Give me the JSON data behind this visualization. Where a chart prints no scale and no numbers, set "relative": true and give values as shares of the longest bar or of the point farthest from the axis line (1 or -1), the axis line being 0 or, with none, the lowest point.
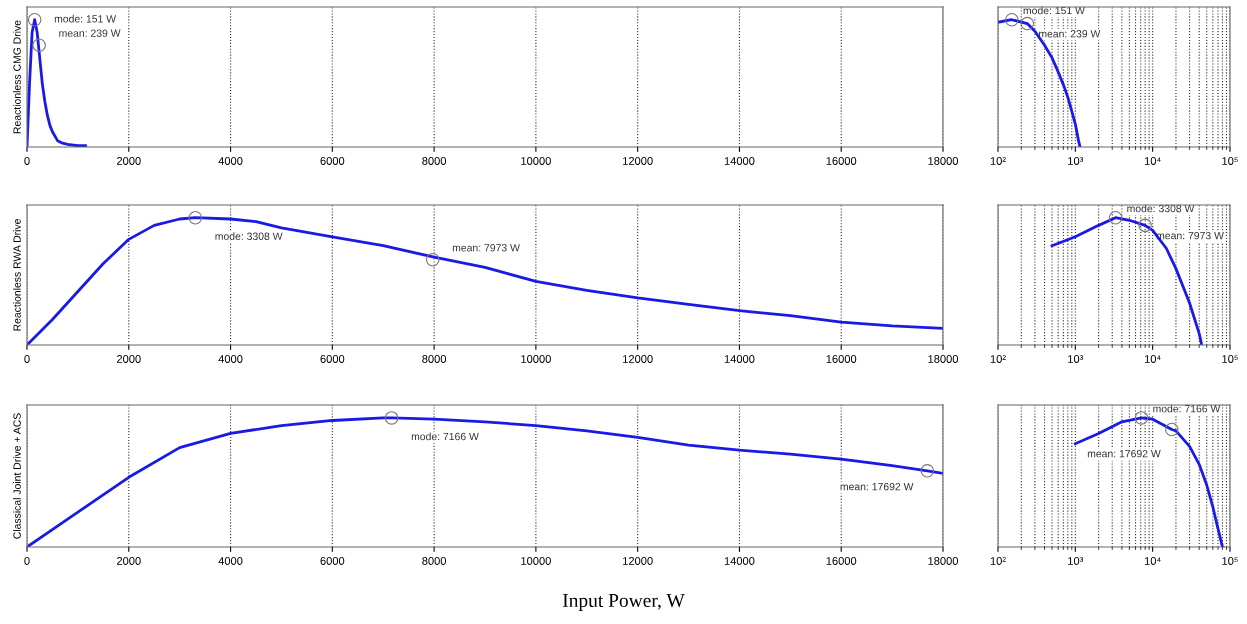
{
  "chart_data": [
    {
      "type": "line",
      "ylabel": "Reactionless CMG Drive",
      "relative": true,
      "grid": "x",
      "xlim": [
        0,
        18000
      ],
      "xticks": [
        0,
        2000,
        4000,
        6000,
        8000,
        10000,
        12000,
        14000,
        16000,
        18000
      ],
      "x": [
        0,
        50,
        100,
        151,
        200,
        250,
        300,
        350,
        400,
        450,
        500,
        600,
        700,
        800,
        1000,
        1150
      ],
      "series": [
        {
          "color": "#1a1ae6",
          "values": [
            0,
            0.5,
            0.9,
            1.0,
            0.9,
            0.7,
            0.5,
            0.36,
            0.25,
            0.17,
            0.12,
            0.05,
            0.03,
            0.02,
            0.01,
            0.01
          ]
        }
      ],
      "annotations": [
        {
          "text": "mode: 151 W",
          "x": 151,
          "y": 1.0
        },
        {
          "text": "mean: 239 W",
          "x": 239,
          "y": 0.8
        }
      ]
    },
    {
      "type": "line",
      "relative": true,
      "grid": "x",
      "log": "x",
      "xlim": [
        100,
        100000
      ],
      "xticks": [
        {
          "value": 100,
          "label": "10²"
        },
        {
          "value": 1000,
          "label": "10³"
        },
        {
          "value": 10000,
          "label": "10⁴"
        },
        {
          "value": 100000,
          "label": "10⁵"
        }
      ],
      "x": [
        100,
        150,
        239,
        300,
        400,
        500,
        600,
        700,
        800,
        900,
        1000,
        1100,
        1150
      ],
      "series": [
        {
          "color": "#1a1ae6",
          "values": [
            0.98,
            1.0,
            0.97,
            0.91,
            0.8,
            0.7,
            0.59,
            0.49,
            0.39,
            0.28,
            0.18,
            0.05,
            0
          ]
        }
      ],
      "annotations": [
        {
          "text": "mode: 151 W",
          "x": 151,
          "y": 1.0
        },
        {
          "text": "mean: 239 W",
          "x": 239,
          "y": 0.97
        }
      ]
    },
    {
      "type": "line",
      "ylabel": "Reactionless RWA Drive",
      "relative": true,
      "grid": "x",
      "xlim": [
        0,
        18000
      ],
      "xticks": [
        0,
        2000,
        4000,
        6000,
        8000,
        10000,
        12000,
        14000,
        16000,
        18000
      ],
      "x": [
        0,
        500,
        1000,
        1500,
        2000,
        2500,
        3000,
        3308,
        4000,
        4500,
        5000,
        6000,
        7000,
        8000,
        9000,
        10000,
        11000,
        12000,
        13000,
        14000,
        15000,
        16000,
        17000,
        18000
      ],
      "series": [
        {
          "color": "#1a1ae6",
          "values": [
            0,
            0.2,
            0.42,
            0.64,
            0.83,
            0.94,
            0.99,
            1.0,
            0.99,
            0.97,
            0.92,
            0.85,
            0.78,
            0.69,
            0.61,
            0.5,
            0.43,
            0.37,
            0.32,
            0.27,
            0.23,
            0.18,
            0.15,
            0.13
          ]
        }
      ],
      "annotations": [
        {
          "text": "mode: 3308 W",
          "x": 3308,
          "y": 1.0
        },
        {
          "text": "mean: 7973 W",
          "x": 7973,
          "y": 0.67
        }
      ]
    },
    {
      "type": "line",
      "relative": true,
      "grid": "x",
      "log": "x",
      "xlim": [
        100,
        100000
      ],
      "xticks": [
        {
          "value": 100,
          "label": "10²"
        },
        {
          "value": 1000,
          "label": "10³"
        },
        {
          "value": 10000,
          "label": "10⁴"
        },
        {
          "value": 100000,
          "label": "10⁵"
        }
      ],
      "x": [
        500,
        1000,
        2000,
        3308,
        5000,
        7973,
        10000,
        15000,
        20000,
        30000,
        40000,
        43000
      ],
      "series": [
        {
          "color": "#1a1ae6",
          "values": [
            0.78,
            0.85,
            0.94,
            1.0,
            0.98,
            0.94,
            0.9,
            0.76,
            0.6,
            0.33,
            0.09,
            0
          ]
        }
      ],
      "annotations": [
        {
          "text": "mode: 3308 W",
          "x": 3308,
          "y": 1.0
        },
        {
          "text": "mean: 7973 W",
          "x": 7973,
          "y": 0.94
        }
      ]
    },
    {
      "type": "line",
      "ylabel": "Classical Joint Drive + ACS",
      "xlabel": "Input Power, W",
      "relative": true,
      "grid": "x",
      "xlim": [
        0,
        18000
      ],
      "xticks": [
        0,
        2000,
        4000,
        6000,
        8000,
        10000,
        12000,
        14000,
        16000,
        18000
      ],
      "x": [
        0,
        1000,
        2000,
        3000,
        4000,
        5000,
        6000,
        7000,
        7166,
        8000,
        9000,
        10000,
        11000,
        12000,
        13000,
        14000,
        15000,
        16000,
        17000,
        17692,
        18000
      ],
      "series": [
        {
          "color": "#1a1ae6",
          "values": [
            0,
            0.27,
            0.54,
            0.77,
            0.88,
            0.94,
            0.98,
            1.0,
            1.0,
            0.99,
            0.97,
            0.94,
            0.9,
            0.85,
            0.79,
            0.75,
            0.72,
            0.68,
            0.63,
            0.59,
            0.57
          ]
        }
      ],
      "annotations": [
        {
          "text": "mode: 7166 W",
          "x": 7166,
          "y": 1.0
        },
        {
          "text": "mean: 17692 W",
          "x": 17692,
          "y": 0.59
        }
      ]
    },
    {
      "type": "line",
      "relative": true,
      "grid": "x",
      "log": "x",
      "xlim": [
        100,
        100000
      ],
      "xticks": [
        {
          "value": 100,
          "label": "10²"
        },
        {
          "value": 1000,
          "label": "10³"
        },
        {
          "value": 10000,
          "label": "10⁴"
        },
        {
          "value": 100000,
          "label": "10⁵"
        }
      ],
      "x": [
        1000,
        2000,
        4000,
        7166,
        10000,
        17692,
        20000,
        30000,
        40000,
        50000,
        60000,
        70000,
        80000
      ],
      "series": [
        {
          "color": "#1a1ae6",
          "values": [
            0.8,
            0.88,
            0.97,
            1.0,
            0.99,
            0.91,
            0.9,
            0.78,
            0.64,
            0.48,
            0.31,
            0.14,
            0
          ]
        }
      ],
      "annotations": [
        {
          "text": "mode: 7166 W",
          "x": 7166,
          "y": 1.0
        },
        {
          "text": "mean: 17692 W",
          "x": 17692,
          "y": 0.91
        }
      ]
    }
  ]
}
